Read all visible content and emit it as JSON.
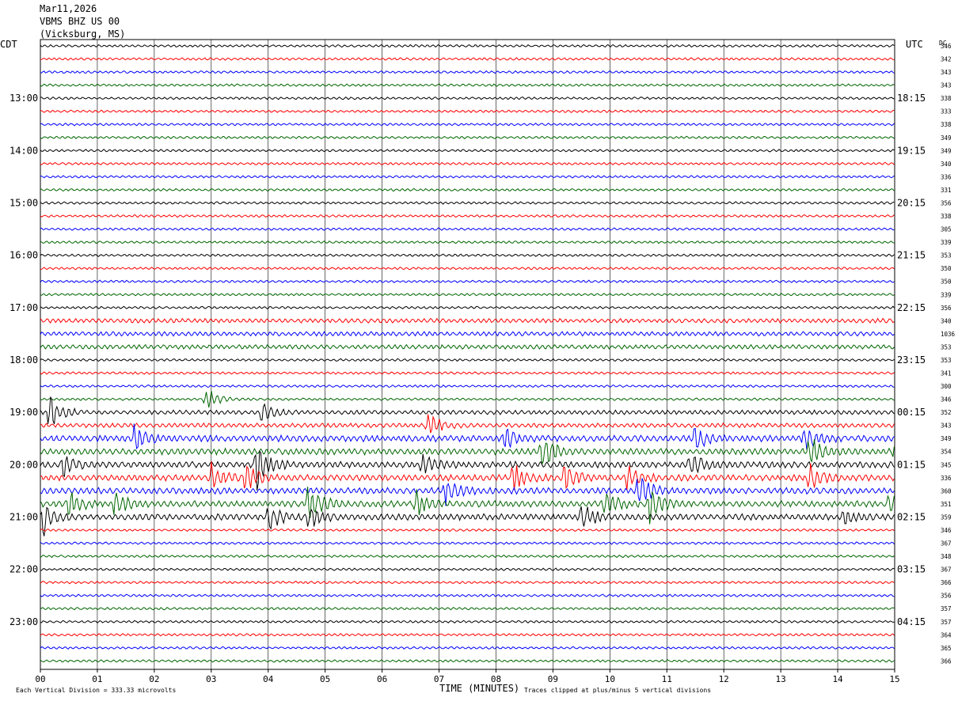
{
  "header": {
    "date": "Mar11,2026",
    "station": "VBMS BHZ US 00",
    "location": "(Vicksburg, MS)"
  },
  "labels": {
    "left_zone": "CDT",
    "right_zone": "UTC",
    "dc_label": "DC",
    "x_title": "TIME (MINUTES)",
    "scale_note": "Each Vertical Division =  333.33 microvolts",
    "clip_note": "Traces clipped at plus/minus 5 vertical divisions"
  },
  "chart_data": {
    "type": "line",
    "title": "VBMS BHZ US 00",
    "xlabel": "TIME (MINUTES)",
    "ylabel": "",
    "xlim": [
      0,
      15
    ],
    "x_tick_labels": [
      "00",
      "01",
      "02",
      "03",
      "04",
      "05",
      "06",
      "07",
      "08",
      "09",
      "10",
      "11",
      "12",
      "13",
      "14",
      "15"
    ],
    "minutes_per_line": 15,
    "line_count": 48,
    "line_colors": [
      "#000000",
      "#ff0000",
      "#0000ff",
      "#006600"
    ],
    "left_hour_labels": [
      {
        "line": 4,
        "text": "13:00"
      },
      {
        "line": 8,
        "text": "14:00"
      },
      {
        "line": 12,
        "text": "15:00"
      },
      {
        "line": 16,
        "text": "16:00"
      },
      {
        "line": 20,
        "text": "17:00"
      },
      {
        "line": 24,
        "text": "18:00"
      },
      {
        "line": 28,
        "text": "19:00"
      },
      {
        "line": 32,
        "text": "20:00"
      },
      {
        "line": 36,
        "text": "21:00"
      },
      {
        "line": 40,
        "text": "22:00"
      },
      {
        "line": 44,
        "text": "23:00"
      }
    ],
    "right_hour_labels": [
      {
        "line": 4,
        "text": "18:15"
      },
      {
        "line": 8,
        "text": "19:15"
      },
      {
        "line": 12,
        "text": "20:15"
      },
      {
        "line": 16,
        "text": "21:15"
      },
      {
        "line": 20,
        "text": "22:15"
      },
      {
        "line": 24,
        "text": "23:15"
      },
      {
        "line": 28,
        "text": "00:15"
      },
      {
        "line": 32,
        "text": "01:15"
      },
      {
        "line": 36,
        "text": "02:15"
      },
      {
        "line": 40,
        "text": "03:15"
      },
      {
        "line": 44,
        "text": "04:15"
      }
    ],
    "dc_offsets": [
      "346",
      "342",
      "343",
      "343",
      "338",
      "333",
      "338",
      "349",
      "349",
      "340",
      "336",
      "331",
      "356",
      "338",
      "305",
      "339",
      "353",
      "350",
      "350",
      "339",
      "356",
      "340",
      "1036",
      "353",
      "353",
      "341",
      "300",
      "346",
      "352",
      "343",
      "349",
      "354",
      "345",
      "336",
      "360",
      "351",
      "359",
      "346",
      "367",
      "348",
      "367",
      "366",
      "356",
      "357",
      "357",
      "364",
      "365",
      "366"
    ],
    "activity_level": [
      1,
      1,
      1,
      1,
      1,
      1,
      1,
      1,
      1,
      1,
      1,
      1,
      1,
      1,
      1,
      1,
      1,
      1,
      1,
      1,
      1,
      2,
      2,
      2,
      1,
      1,
      1,
      1,
      2,
      2,
      3,
      3,
      3,
      3,
      3,
      3,
      3,
      1,
      1,
      1,
      1,
      1,
      1,
      1,
      1,
      1,
      1,
      1
    ],
    "events": [
      {
        "line": 27,
        "minute": 2.9,
        "amplitude": 3
      },
      {
        "line": 28,
        "minute": 0.15,
        "amplitude": 4
      },
      {
        "line": 28,
        "minute": 3.9,
        "amplitude": 3
      },
      {
        "line": 29,
        "minute": 6.8,
        "amplitude": 3
      },
      {
        "line": 30,
        "minute": 1.65,
        "amplitude": 3
      },
      {
        "line": 30,
        "minute": 8.15,
        "amplitude": 3
      },
      {
        "line": 30,
        "minute": 11.5,
        "amplitude": 3
      },
      {
        "line": 30,
        "minute": 13.4,
        "amplitude": 3
      },
      {
        "line": 31,
        "minute": 8.8,
        "amplitude": 5
      },
      {
        "line": 31,
        "minute": 13.5,
        "amplitude": 4
      },
      {
        "line": 31,
        "minute": 15.0,
        "amplitude": 5
      },
      {
        "line": 32,
        "minute": 0.4,
        "amplitude": 3
      },
      {
        "line": 32,
        "minute": 3.8,
        "amplitude": 6
      },
      {
        "line": 32,
        "minute": 6.7,
        "amplitude": 3
      },
      {
        "line": 32,
        "minute": 11.4,
        "amplitude": 3
      },
      {
        "line": 33,
        "minute": 3.0,
        "amplitude": 3
      },
      {
        "line": 33,
        "minute": 3.6,
        "amplitude": 3
      },
      {
        "line": 33,
        "minute": 8.3,
        "amplitude": 3
      },
      {
        "line": 33,
        "minute": 9.2,
        "amplitude": 3
      },
      {
        "line": 33,
        "minute": 10.3,
        "amplitude": 3
      },
      {
        "line": 33,
        "minute": 13.5,
        "amplitude": 3
      },
      {
        "line": 34,
        "minute": 7.1,
        "amplitude": 3
      },
      {
        "line": 34,
        "minute": 10.5,
        "amplitude": 4
      },
      {
        "line": 35,
        "minute": 0.5,
        "amplitude": 3
      },
      {
        "line": 35,
        "minute": 1.3,
        "amplitude": 3
      },
      {
        "line": 35,
        "minute": 4.7,
        "amplitude": 5
      },
      {
        "line": 35,
        "minute": 6.6,
        "amplitude": 3
      },
      {
        "line": 35,
        "minute": 9.9,
        "amplitude": 3
      },
      {
        "line": 35,
        "minute": 10.7,
        "amplitude": 4
      },
      {
        "line": 35,
        "minute": 14.9,
        "amplitude": 3
      },
      {
        "line": 36,
        "minute": 0.05,
        "amplitude": 4
      },
      {
        "line": 36,
        "minute": 4.0,
        "amplitude": 3
      },
      {
        "line": 36,
        "minute": 4.7,
        "amplitude": 3
      },
      {
        "line": 36,
        "minute": 9.5,
        "amplitude": 3
      },
      {
        "line": 36,
        "minute": 14.1,
        "amplitude": 2
      }
    ]
  }
}
